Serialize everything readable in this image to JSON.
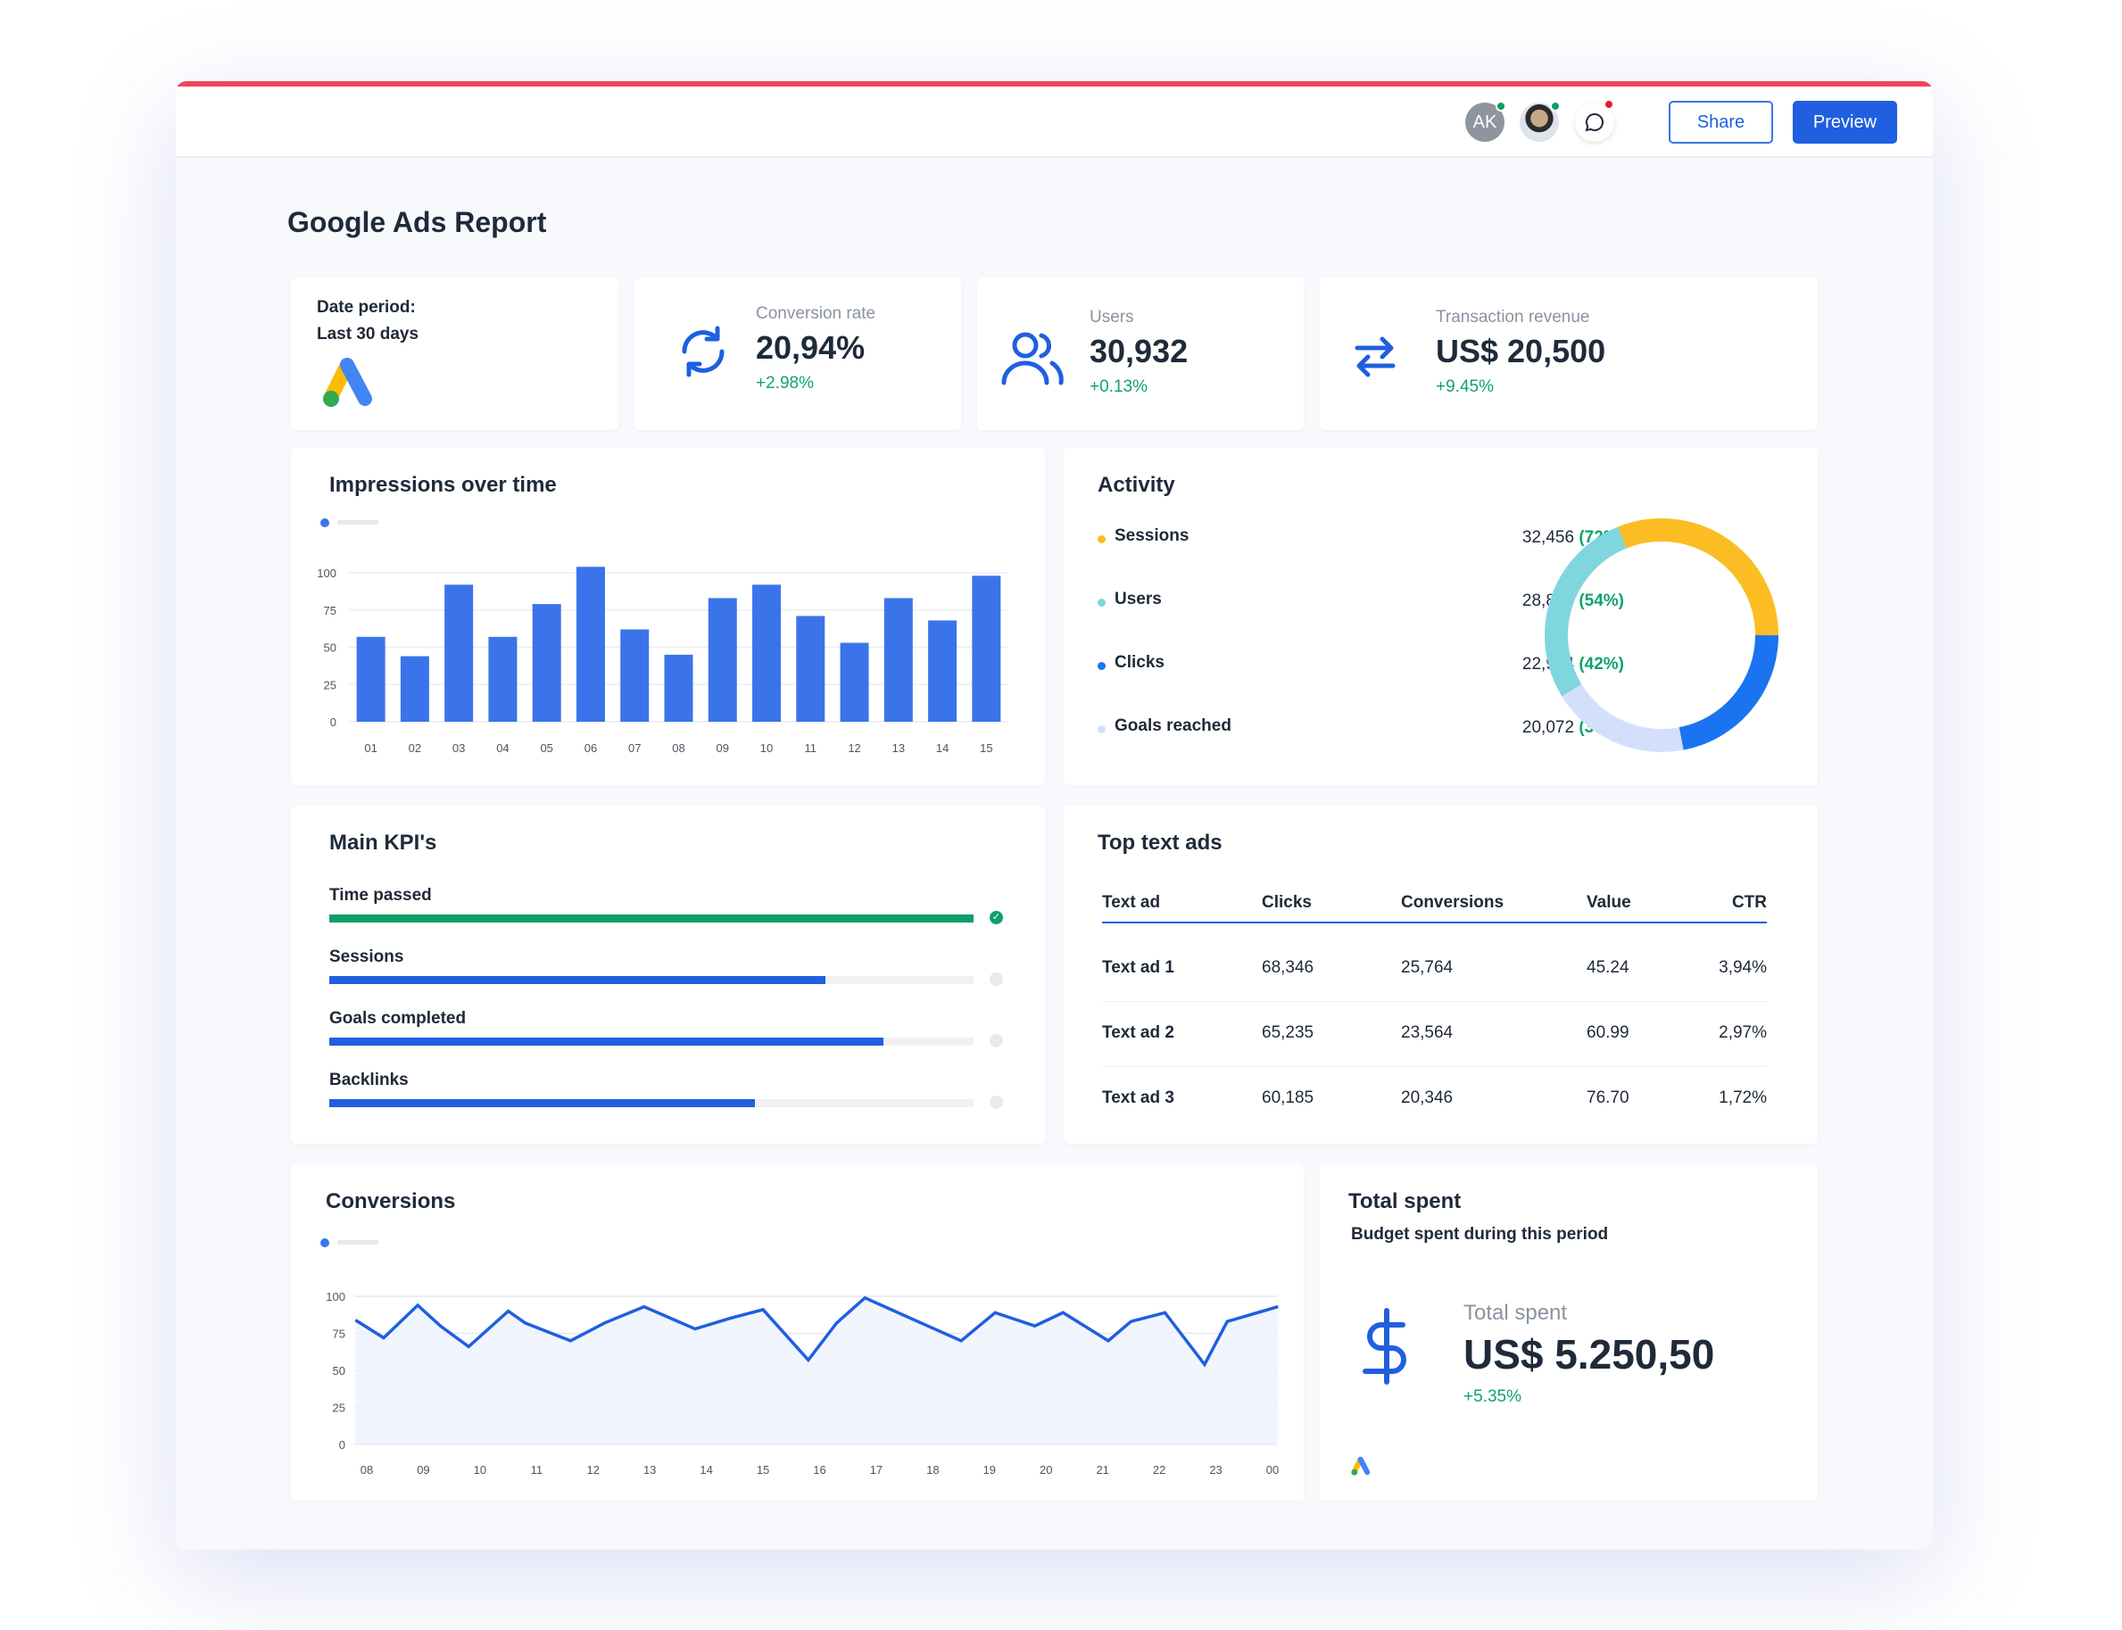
{
  "header": {
    "avatar_initials": "AK",
    "share_label": "Share",
    "preview_label": "Preview"
  },
  "page": {
    "title": "Google Ads Report"
  },
  "date_card": {
    "label": "Date period:",
    "value": "Last 30 days"
  },
  "metrics": [
    {
      "label": "Conversion rate",
      "value": "20,94%",
      "change": "+2.98%",
      "icon": "refresh-icon"
    },
    {
      "label": "Users",
      "value": "30,932",
      "change": "+0.13%",
      "icon": "users-icon"
    },
    {
      "label": "Transaction revenue",
      "value": "US$ 20,500",
      "change": "+9.45%",
      "icon": "transfer-icon"
    }
  ],
  "impressions": {
    "title": "Impressions over time"
  },
  "activity": {
    "title": "Activity",
    "items": [
      {
        "label": "Sessions",
        "value": "32,456",
        "pct": "(72%)",
        "color": "#fbbd23"
      },
      {
        "label": "Users",
        "value": "28,834",
        "pct": "(54%)",
        "color": "#7fd6df"
      },
      {
        "label": "Clicks",
        "value": "22,934",
        "pct": "(42%)",
        "color": "#1a73f0"
      },
      {
        "label": "Goals reached",
        "value": "20,072",
        "pct": "(37%)",
        "color": "#d4e0fb"
      }
    ]
  },
  "kpis": {
    "title": "Main KPI's",
    "items": [
      {
        "label": "Time passed",
        "progress": 1.0,
        "color": "#0f9d68",
        "done": true
      },
      {
        "label": "Sessions",
        "progress": 0.77,
        "color": "#1f5fe0",
        "done": false
      },
      {
        "label": "Goals completed",
        "progress": 0.86,
        "color": "#1f5fe0",
        "done": false
      },
      {
        "label": "Backlinks",
        "progress": 0.66,
        "color": "#1f5fe0",
        "done": false
      }
    ]
  },
  "top_ads": {
    "title": "Top text ads",
    "columns": [
      "Text ad",
      "Clicks",
      "Conversions",
      "Value",
      "CTR"
    ],
    "rows": [
      [
        "Text ad 1",
        "68,346",
        "25,764",
        "45.24",
        "3,94%"
      ],
      [
        "Text ad 2",
        "65,235",
        "23,564",
        "60.99",
        "2,97%"
      ],
      [
        "Text ad 3",
        "60,185",
        "20,346",
        "76.70",
        "1,72%"
      ]
    ]
  },
  "conversions": {
    "title": "Conversions"
  },
  "total_spent": {
    "title": "Total spent",
    "subtitle": "Budget spent during this period",
    "label": "Total spent",
    "value": "US$ 5.250,50",
    "change": "+5.35%"
  },
  "chart_data": [
    {
      "type": "bar",
      "title": "Impressions over time",
      "categories": [
        "01",
        "02",
        "03",
        "04",
        "05",
        "06",
        "07",
        "08",
        "09",
        "10",
        "11",
        "12",
        "13",
        "14",
        "15"
      ],
      "values": [
        57,
        44,
        92,
        57,
        79,
        104,
        62,
        45,
        83,
        92,
        71,
        53,
        83,
        68,
        98
      ],
      "yticks": [
        0,
        25,
        50,
        75,
        100
      ],
      "ylim": [
        0,
        100
      ],
      "grid": true,
      "color": "#3b74ea"
    },
    {
      "type": "area",
      "title": "Conversions",
      "xticks": [
        "08",
        "09",
        "10",
        "11",
        "12",
        "13",
        "14",
        "15",
        "16",
        "17",
        "18",
        "19",
        "20",
        "21",
        "22",
        "23",
        "00"
      ],
      "x": [
        7.8,
        8.3,
        8.9,
        9.3,
        9.8,
        10.5,
        10.8,
        11.6,
        12.2,
        12.9,
        13.8,
        14.4,
        15.0,
        15.8,
        16.3,
        16.8,
        17.5,
        18.5,
        19.1,
        19.8,
        20.3,
        21.1,
        21.5,
        22.1,
        22.8,
        23.2,
        24.1
      ],
      "y": [
        84,
        72,
        94,
        80,
        66,
        90,
        82,
        70,
        82,
        93,
        78,
        85,
        91,
        57,
        82,
        99,
        87,
        70,
        89,
        80,
        89,
        70,
        83,
        89,
        54,
        83,
        93
      ],
      "yticks": [
        0,
        25,
        50,
        75,
        100
      ],
      "ylim": [
        0,
        100
      ],
      "grid": true,
      "color": "#1f5fe0"
    },
    {
      "type": "pie",
      "title": "Activity",
      "categories": [
        "Sessions",
        "Clicks",
        "Goals reached",
        "Users"
      ],
      "values": [
        32456,
        22934,
        20072,
        28834
      ],
      "colors": [
        "#fbbd23",
        "#1a73f0",
        "#d4e0fb",
        "#7fd6df"
      ],
      "donut": true
    }
  ]
}
